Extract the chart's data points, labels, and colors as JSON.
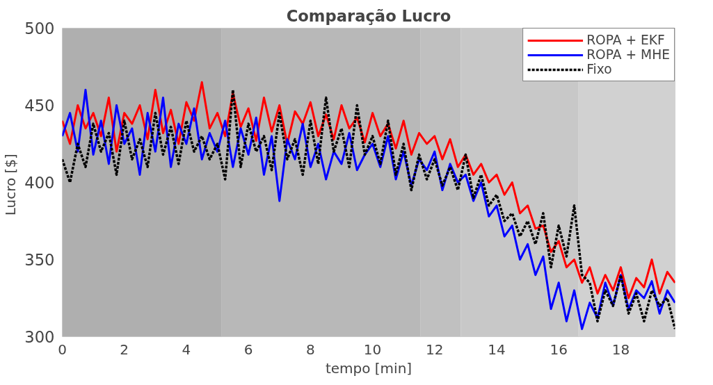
{
  "chart_data": {
    "type": "line",
    "title": "Comparação Lucro",
    "xlabel": "tempo [min]",
    "ylabel": "Lucro  [$]",
    "xlim": [
      0,
      19.75
    ],
    "ylim": [
      300,
      500
    ],
    "xticks": [
      0,
      2,
      4,
      6,
      8,
      10,
      12,
      14,
      16,
      18
    ],
    "yticks": [
      300,
      350,
      400,
      450,
      500
    ],
    "legend": "top right",
    "marker": "none",
    "x": [
      0,
      0.25,
      0.5,
      0.75,
      1,
      1.25,
      1.5,
      1.75,
      2,
      2.25,
      2.5,
      2.75,
      3,
      3.25,
      3.5,
      3.75,
      4,
      4.25,
      4.5,
      4.75,
      5,
      5.25,
      5.5,
      5.75,
      6,
      6.25,
      6.5,
      6.75,
      7,
      7.25,
      7.5,
      7.75,
      8,
      8.25,
      8.5,
      8.75,
      9,
      9.25,
      9.5,
      9.75,
      10,
      10.25,
      10.5,
      10.75,
      11,
      11.25,
      11.5,
      11.75,
      12,
      12.25,
      12.5,
      12.75,
      13,
      13.25,
      13.5,
      13.75,
      14,
      14.25,
      14.5,
      14.75,
      15,
      15.25,
      15.5,
      15.75,
      16,
      16.25,
      16.5,
      16.75,
      17,
      17.25,
      17.5,
      17.75,
      18,
      18.25,
      18.5,
      18.75,
      19,
      19.25,
      19.5,
      19.75
    ],
    "bands": [
      {
        "axis": "x",
        "from": 0,
        "to": 5.14,
        "color": "#afafaf"
      },
      {
        "axis": "x",
        "from": 5.14,
        "to": 11.55,
        "color": "#b8b8b8"
      },
      {
        "axis": "x",
        "from": 11.55,
        "to": 12.84,
        "color": "#c0c0c0"
      },
      {
        "axis": "x",
        "from": 12.84,
        "to": 16.64,
        "color": "#c8c8c8"
      },
      {
        "axis": "x",
        "from": 16.64,
        "to": 19.75,
        "color": "#d1d1d1"
      }
    ],
    "series": [
      {
        "name": "ROPA + EKF",
        "color": "#ff0000",
        "line_style": "solid",
        "values": [
          440,
          425,
          450,
          435,
          445,
          430,
          455,
          420,
          445,
          438,
          450,
          428,
          460,
          432,
          447,
          425,
          452,
          440,
          465,
          435,
          445,
          430,
          458,
          436,
          448,
          427,
          455,
          433,
          450,
          425,
          446,
          438,
          452,
          430,
          444,
          428,
          450,
          435,
          442,
          426,
          445,
          430,
          438,
          422,
          440,
          418,
          432,
          425,
          430,
          415,
          428,
          410,
          418,
          405,
          412,
          400,
          405,
          392,
          400,
          380,
          385,
          370,
          372,
          355,
          362,
          345,
          350,
          335,
          345,
          328,
          340,
          330,
          345,
          325,
          338,
          332,
          350,
          328,
          342,
          335
        ]
      },
      {
        "name": "ROPA + MHE",
        "color": "#0000ff",
        "line_style": "solid",
        "values": [
          430,
          445,
          420,
          460,
          418,
          440,
          412,
          450,
          425,
          435,
          405,
          445,
          420,
          455,
          410,
          438,
          425,
          448,
          415,
          432,
          420,
          440,
          410,
          435,
          418,
          442,
          405,
          430,
          388,
          428,
          415,
          438,
          410,
          425,
          402,
          420,
          412,
          432,
          408,
          418,
          425,
          410,
          430,
          402,
          420,
          398,
          415,
          408,
          420,
          395,
          412,
          400,
          405,
          388,
          400,
          378,
          385,
          365,
          372,
          350,
          360,
          340,
          352,
          318,
          335,
          310,
          330,
          305,
          322,
          312,
          335,
          320,
          340,
          318,
          330,
          325,
          336,
          315,
          330,
          322
        ]
      },
      {
        "name": "Fixo",
        "color": "#000000",
        "line_style": "dotted",
        "values": [
          415,
          400,
          425,
          410,
          438,
          420,
          432,
          405,
          440,
          415,
          428,
          410,
          445,
          418,
          436,
          412,
          440,
          420,
          430,
          415,
          425,
          402,
          460,
          410,
          438,
          420,
          430,
          408,
          445,
          415,
          428,
          405,
          440,
          412,
          455,
          420,
          435,
          410,
          450,
          418,
          430,
          412,
          440,
          405,
          425,
          395,
          418,
          402,
          415,
          398,
          410,
          395,
          418,
          390,
          405,
          385,
          392,
          375,
          380,
          365,
          375,
          360,
          380,
          345,
          372,
          352,
          385,
          340,
          335,
          310,
          330,
          320,
          340,
          315,
          328,
          310,
          330,
          320,
          325,
          305
        ]
      }
    ]
  }
}
